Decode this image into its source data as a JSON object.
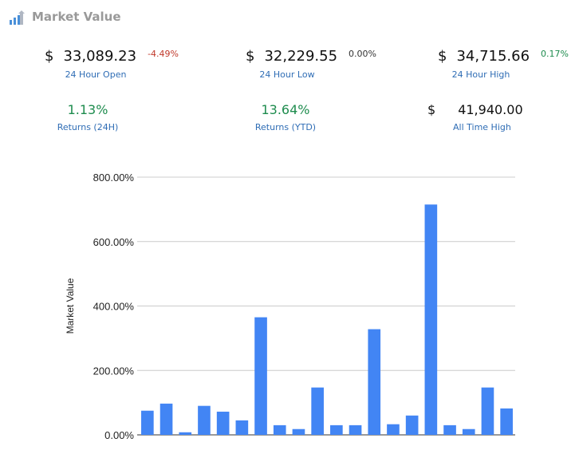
{
  "header": {
    "title": "Market Value",
    "icon": "chart-logo-icon"
  },
  "stats": {
    "open": {
      "currency": "$",
      "value": "33,089.23",
      "change": "-4.49%",
      "label": "24 Hour Open"
    },
    "low": {
      "currency": "$",
      "value": "32,229.55",
      "change": "0.00%",
      "label": "24 Hour Low"
    },
    "high": {
      "currency": "$",
      "value": "34,715.66",
      "change": "0.17%",
      "label": "24 Hour High"
    },
    "returns_24h": {
      "value": "1.13%",
      "label": "Returns (24H)"
    },
    "returns_ytd": {
      "value": "13.64%",
      "label": "Returns (YTD)"
    },
    "ath": {
      "currency": "$",
      "value": "41,940.00",
      "label": "All Time High"
    }
  },
  "colors": {
    "bar": "#4285f4",
    "positive": "#1e8c4e",
    "negative": "#c0392b",
    "link": "#2f6db5"
  },
  "chart_data": {
    "type": "bar",
    "ylabel": "Market Value",
    "ylim": [
      0,
      800
    ],
    "yticks": [
      "0.00%",
      "200.00%",
      "400.00%",
      "600.00%",
      "800.00%"
    ],
    "grid": true,
    "values": [
      75,
      97,
      8,
      90,
      72,
      45,
      365,
      30,
      18,
      147,
      30,
      30,
      328,
      33,
      60,
      715,
      30,
      18,
      147,
      82
    ]
  }
}
